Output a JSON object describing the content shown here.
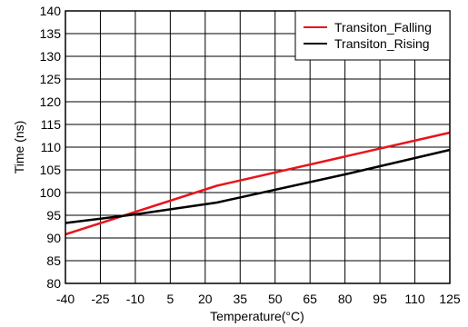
{
  "chart_data": {
    "type": "line",
    "xlabel": "Temperature(°C)",
    "ylabel": "Time (ns)",
    "xlim": [
      -40,
      125
    ],
    "ylim": [
      80,
      140
    ],
    "x_ticks": [
      "-40",
      "-25",
      "-10",
      "5",
      "20",
      "35",
      "50",
      "65",
      "80",
      "95",
      "110",
      "125"
    ],
    "y_ticks": [
      "80",
      "85",
      "90",
      "95",
      "100",
      "105",
      "110",
      "115",
      "120",
      "125",
      "130",
      "135",
      "140"
    ],
    "grid": true,
    "legend_position": "top-right",
    "series": [
      {
        "name": "Transiton_Falling",
        "color": "#e8141b",
        "x": [
          -40,
          25,
          125
        ],
        "y": [
          90.8,
          101.5,
          113.2
        ]
      },
      {
        "name": "Transiton_Rising",
        "color": "#000000",
        "x": [
          -40,
          -10,
          25,
          80,
          125
        ],
        "y": [
          93.3,
          95.2,
          97.8,
          104.0,
          109.4
        ]
      }
    ]
  }
}
